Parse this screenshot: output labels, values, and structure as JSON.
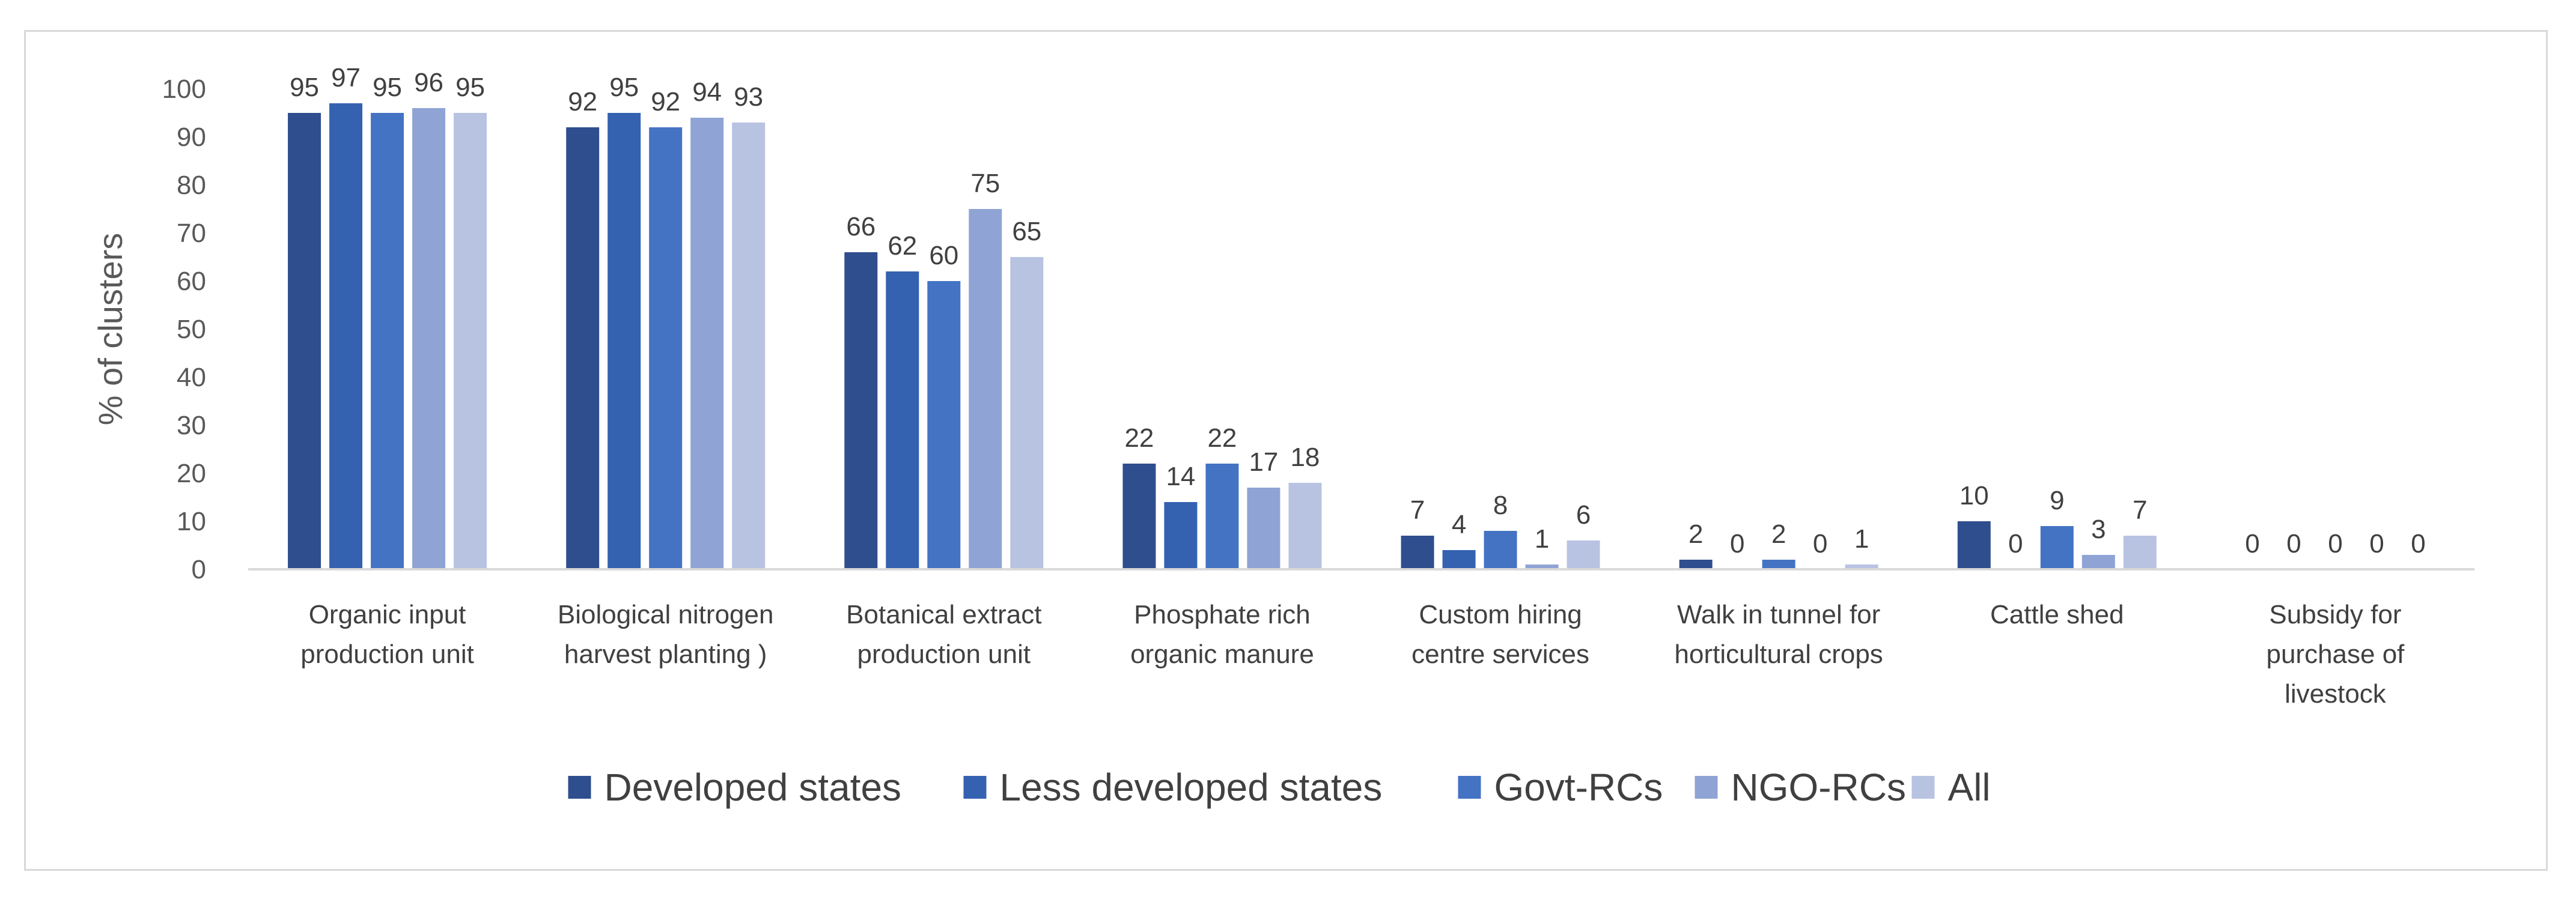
{
  "chart_data": {
    "type": "bar",
    "ylabel": "% of clusters",
    "xlabel": "",
    "ylim": [
      0,
      100
    ],
    "ytick_step": 10,
    "grid": false,
    "legend_position": "bottom",
    "categories": [
      [
        "Organic input",
        "production unit"
      ],
      [
        "Biological nitrogen",
        "harvest planting )"
      ],
      [
        "Botanical extract",
        "production unit"
      ],
      [
        "Phosphate rich",
        "organic manure"
      ],
      [
        "Custom hiring",
        "centre services"
      ],
      [
        "Walk in tunnel for",
        "horticultural crops"
      ],
      [
        "Cattle shed"
      ],
      [
        "Subsidy for",
        "purchase of",
        "livestock"
      ]
    ],
    "series": [
      {
        "name": "Developed states",
        "color": "#2f4e8e",
        "values": [
          95,
          92,
          66,
          22,
          7,
          2,
          10,
          0
        ]
      },
      {
        "name": "Less developed states",
        "color": "#3462b0",
        "values": [
          97,
          95,
          62,
          14,
          4,
          0,
          0,
          0
        ]
      },
      {
        "name": "Govt-RCs",
        "color": "#4473c4",
        "values": [
          95,
          92,
          60,
          22,
          8,
          2,
          9,
          0
        ]
      },
      {
        "name": "NGO-RCs",
        "color": "#8fa4d4",
        "values": [
          96,
          94,
          75,
          17,
          1,
          0,
          3,
          0
        ]
      },
      {
        "name": "All",
        "color": "#b8c3e2",
        "values": [
          95,
          93,
          65,
          18,
          6,
          1,
          7,
          0
        ]
      }
    ]
  }
}
